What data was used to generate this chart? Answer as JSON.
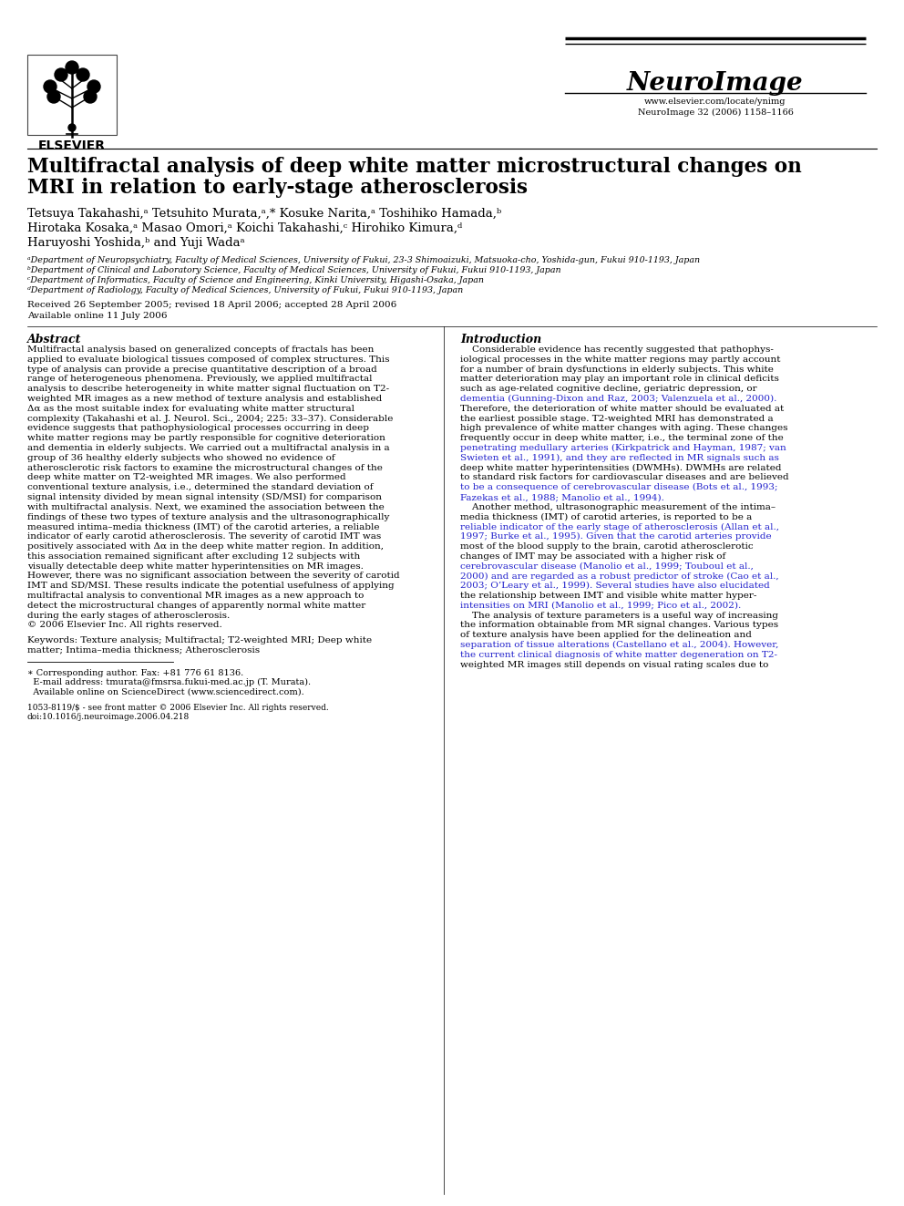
{
  "bg_color": "#ffffff",
  "journal_name": "NeuroImage",
  "journal_info": "NeuroImage 32 (2006) 1158–1166",
  "journal_url": "www.elsevier.com/locate/ynimg",
  "affiliations": [
    "ᵃDepartment of Neuropsychiatry, Faculty of Medical Sciences, University of Fukui, 23-3 Shimoaizuki, Matsuoka-cho, Yoshida-gun, Fukui 910-1193, Japan",
    "ᵇDepartment of Clinical and Laboratory Science, Faculty of Medical Sciences, University of Fukui, Fukui 910-1193, Japan",
    "ᶜDepartment of Informatics, Faculty of Science and Engineering, Kinki University, Higashi-Osaka, Japan",
    "ᵈDepartment of Radiology, Faculty of Medical Sciences, University of Fukui, Fukui 910-1193, Japan"
  ],
  "keywords_text": "Keywords: Texture analysis; Multifractal; T2-weighted MRI; Deep white\nmatter; Intima–media thickness; Atherosclerosis",
  "abstract_lines": [
    "Multifractal analysis based on generalized concepts of fractals has been",
    "applied to evaluate biological tissues composed of complex structures. This",
    "type of analysis can provide a precise quantitative description of a broad",
    "range of heterogeneous phenomena. Previously, we applied multifractal",
    "analysis to describe heterogeneity in white matter signal fluctuation on T2-",
    "weighted MR images as a new method of texture analysis and established",
    "Δα as the most suitable index for evaluating white matter structural",
    "complexity (Takahashi et al. J. Neurol. Sci., 2004; 225: 33–37). Considerable",
    "evidence suggests that pathophysiological processes occurring in deep",
    "white matter regions may be partly responsible for cognitive deterioration",
    "and dementia in elderly subjects. We carried out a multifractal analysis in a",
    "group of 36 healthy elderly subjects who showed no evidence of",
    "atherosclerotic risk factors to examine the microstructural changes of the",
    "deep white matter on T2-weighted MR images. We also performed",
    "conventional texture analysis, i.e., determined the standard deviation of",
    "signal intensity divided by mean signal intensity (SD/MSI) for comparison",
    "with multifractal analysis. Next, we examined the association between the",
    "findings of these two types of texture analysis and the ultrasonographically",
    "measured intima–media thickness (IMT) of the carotid arteries, a reliable",
    "indicator of early carotid atherosclerosis. The severity of carotid IMT was",
    "positively associated with Δα in the deep white matter region. In addition,",
    "this association remained significant after excluding 12 subjects with",
    "visually detectable deep white matter hyperintensities on MR images.",
    "However, there was no significant association between the severity of carotid",
    "IMT and SD/MSI. These results indicate the potential usefulness of applying",
    "multifractal analysis to conventional MR images as a new approach to",
    "detect the microstructural changes of apparently normal white matter",
    "during the early stages of atherosclerosis.",
    "© 2006 Elsevier Inc. All rights reserved."
  ],
  "intro_lines": [
    "    Considerable evidence has recently suggested that pathophys-",
    "iological processes in the white matter regions may partly account",
    "for a number of brain dysfunctions in elderly subjects. This white",
    "matter deterioration may play an important role in clinical deficits",
    "such as age-related cognitive decline, geriatric depression, or",
    "dementia (Gunning-Dixon and Raz, 2003; Valenzuela et al., 2000).",
    "Therefore, the deterioration of white matter should be evaluated at",
    "the earliest possible stage. T2-weighted MRI has demonstrated a",
    "high prevalence of white matter changes with aging. These changes",
    "frequently occur in deep white matter, i.e., the terminal zone of the",
    "penetrating medullary arteries (Kirkpatrick and Hayman, 1987; van",
    "Swieten et al., 1991), and they are reflected in MR signals such as",
    "deep white matter hyperintensities (DWMHs). DWMHs are related",
    "to standard risk factors for cardiovascular diseases and are believed",
    "to be a consequence of cerebrovascular disease (Bots et al., 1993;",
    "Fazekas et al., 1988; Manolio et al., 1994).",
    "    Another method, ultrasonographic measurement of the intima–",
    "media thickness (IMT) of carotid arteries, is reported to be a",
    "reliable indicator of the early stage of atherosclerosis (Allan et al.,",
    "1997; Burke et al., 1995). Given that the carotid arteries provide",
    "most of the blood supply to the brain, carotid atherosclerotic",
    "changes of IMT may be associated with a higher risk of",
    "cerebrovascular disease (Manolio et al., 1999; Touboul et al.,",
    "2000) and are regarded as a robust predictor of stroke (Cao et al.,",
    "2003; O’Leary et al., 1999). Several studies have also elucidated",
    "the relationship between IMT and visible white matter hyper-",
    "intensities on MRI (Manolio et al., 1999; Pico et al., 2002).",
    "    The analysis of texture parameters is a useful way of increasing",
    "the information obtainable from MR signal changes. Various types",
    "of texture analysis have been applied for the delineation and",
    "separation of tissue alterations (Castellano et al., 2004). However,",
    "the current clinical diagnosis of white matter degeneration on T2-",
    "weighted MR images still depends on visual rating scales due to"
  ],
  "intro_blue_lines": [
    5,
    10,
    11,
    14,
    15,
    18,
    19,
    22,
    23,
    24,
    26,
    30,
    31
  ],
  "footnote_lines": [
    "∗ Corresponding author. Fax: +81 776 61 8136.",
    "  E-mail address: tmurata@fmsrsa.fukui-med.ac.jp (T. Murata).",
    "  Available online on ScienceDirect (www.sciencedirect.com)."
  ],
  "copyright_lines": [
    "1053-8119/$ - see front matter © 2006 Elsevier Inc. All rights reserved.",
    "doi:10.1016/j.neuroimage.2006.04.218"
  ]
}
